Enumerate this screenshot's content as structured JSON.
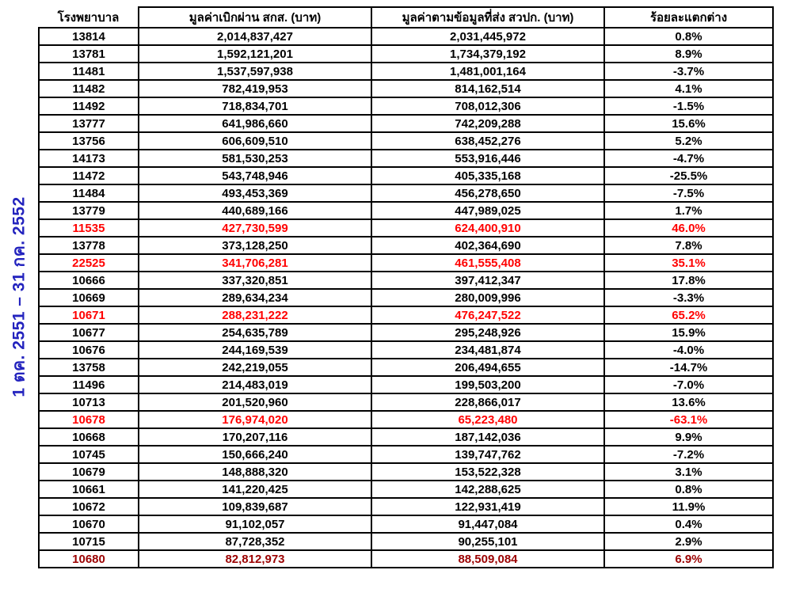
{
  "period_label": "1 ตค. 2551 – 31 กค. 2552",
  "colors": {
    "text": "#000000",
    "border": "#000000",
    "highlight_red": "#FF0000",
    "highlight_darkred": "#9B0000",
    "period_blue": "#2323BE"
  },
  "chart_data": {
    "type": "table",
    "title": "",
    "columns": [
      "โรงพยาบาล",
      "มูลค่าเบิกผ่าน สกส. (บาท)",
      "มูลค่าตามข้อมูลที่ส่ง สวปก. (บาท)",
      "ร้อยละแตกต่าง"
    ],
    "rows": [
      {
        "hospital": "13814",
        "sks_value": "2,014,837,427",
        "svpk_value": "2,031,445,972",
        "pct_diff": "0.8%",
        "highlight": "none"
      },
      {
        "hospital": "13781",
        "sks_value": "1,592,121,201",
        "svpk_value": "1,734,379,192",
        "pct_diff": "8.9%",
        "highlight": "none"
      },
      {
        "hospital": "11481",
        "sks_value": "1,537,597,938",
        "svpk_value": "1,481,001,164",
        "pct_diff": "-3.7%",
        "highlight": "none"
      },
      {
        "hospital": "11482",
        "sks_value": "782,419,953",
        "svpk_value": "814,162,514",
        "pct_diff": "4.1%",
        "highlight": "none"
      },
      {
        "hospital": "11492",
        "sks_value": "718,834,701",
        "svpk_value": "708,012,306",
        "pct_diff": "-1.5%",
        "highlight": "none"
      },
      {
        "hospital": "13777",
        "sks_value": "641,986,660",
        "svpk_value": "742,209,288",
        "pct_diff": "15.6%",
        "highlight": "none"
      },
      {
        "hospital": "13756",
        "sks_value": "606,609,510",
        "svpk_value": "638,452,276",
        "pct_diff": "5.2%",
        "highlight": "none"
      },
      {
        "hospital": "14173",
        "sks_value": "581,530,253",
        "svpk_value": "553,916,446",
        "pct_diff": "-4.7%",
        "highlight": "none"
      },
      {
        "hospital": "11472",
        "sks_value": "543,748,946",
        "svpk_value": "405,335,168",
        "pct_diff": "-25.5%",
        "highlight": "none"
      },
      {
        "hospital": "11484",
        "sks_value": "493,453,369",
        "svpk_value": "456,278,650",
        "pct_diff": "-7.5%",
        "highlight": "none"
      },
      {
        "hospital": "13779",
        "sks_value": "440,689,166",
        "svpk_value": "447,989,025",
        "pct_diff": "1.7%",
        "highlight": "none"
      },
      {
        "hospital": "11535",
        "sks_value": "427,730,599",
        "svpk_value": "624,400,910",
        "pct_diff": "46.0%",
        "highlight": "red"
      },
      {
        "hospital": "13778",
        "sks_value": "373,128,250",
        "svpk_value": "402,364,690",
        "pct_diff": "7.8%",
        "highlight": "none"
      },
      {
        "hospital": "22525",
        "sks_value": "341,706,281",
        "svpk_value": "461,555,408",
        "pct_diff": "35.1%",
        "highlight": "red"
      },
      {
        "hospital": "10666",
        "sks_value": "337,320,851",
        "svpk_value": "397,412,347",
        "pct_diff": "17.8%",
        "highlight": "none"
      },
      {
        "hospital": "10669",
        "sks_value": "289,634,234",
        "svpk_value": "280,009,996",
        "pct_diff": "-3.3%",
        "highlight": "none"
      },
      {
        "hospital": "10671",
        "sks_value": "288,231,222",
        "svpk_value": "476,247,522",
        "pct_diff": "65.2%",
        "highlight": "red"
      },
      {
        "hospital": "10677",
        "sks_value": "254,635,789",
        "svpk_value": "295,248,926",
        "pct_diff": "15.9%",
        "highlight": "none"
      },
      {
        "hospital": "10676",
        "sks_value": "244,169,539",
        "svpk_value": "234,481,874",
        "pct_diff": "-4.0%",
        "highlight": "none"
      },
      {
        "hospital": "13758",
        "sks_value": "242,219,055",
        "svpk_value": "206,494,655",
        "pct_diff": "-14.7%",
        "highlight": "none"
      },
      {
        "hospital": "11496",
        "sks_value": "214,483,019",
        "svpk_value": "199,503,200",
        "pct_diff": "-7.0%",
        "highlight": "none"
      },
      {
        "hospital": "10713",
        "sks_value": "201,520,960",
        "svpk_value": "228,866,017",
        "pct_diff": "13.6%",
        "highlight": "none"
      },
      {
        "hospital": "10678",
        "sks_value": "176,974,020",
        "svpk_value": "65,223,480",
        "pct_diff": "-63.1%",
        "highlight": "red"
      },
      {
        "hospital": "10668",
        "sks_value": "170,207,116",
        "svpk_value": "187,142,036",
        "pct_diff": "9.9%",
        "highlight": "none"
      },
      {
        "hospital": "10745",
        "sks_value": "150,666,240",
        "svpk_value": "139,747,762",
        "pct_diff": "-7.2%",
        "highlight": "none"
      },
      {
        "hospital": "10679",
        "sks_value": "148,888,320",
        "svpk_value": "153,522,328",
        "pct_diff": "3.1%",
        "highlight": "none"
      },
      {
        "hospital": "10661",
        "sks_value": "141,220,425",
        "svpk_value": "142,288,625",
        "pct_diff": "0.8%",
        "highlight": "none"
      },
      {
        "hospital": "10672",
        "sks_value": "109,839,687",
        "svpk_value": "122,931,419",
        "pct_diff": "11.9%",
        "highlight": "none"
      },
      {
        "hospital": "10670",
        "sks_value": "91,102,057",
        "svpk_value": "91,447,084",
        "pct_diff": "0.4%",
        "highlight": "none"
      },
      {
        "hospital": "10715",
        "sks_value": "87,728,352",
        "svpk_value": "90,255,101",
        "pct_diff": "2.9%",
        "highlight": "none"
      },
      {
        "hospital": "10680",
        "sks_value": "82,812,973",
        "svpk_value": "88,509,084",
        "pct_diff": "6.9%",
        "highlight": "darkred"
      }
    ]
  }
}
